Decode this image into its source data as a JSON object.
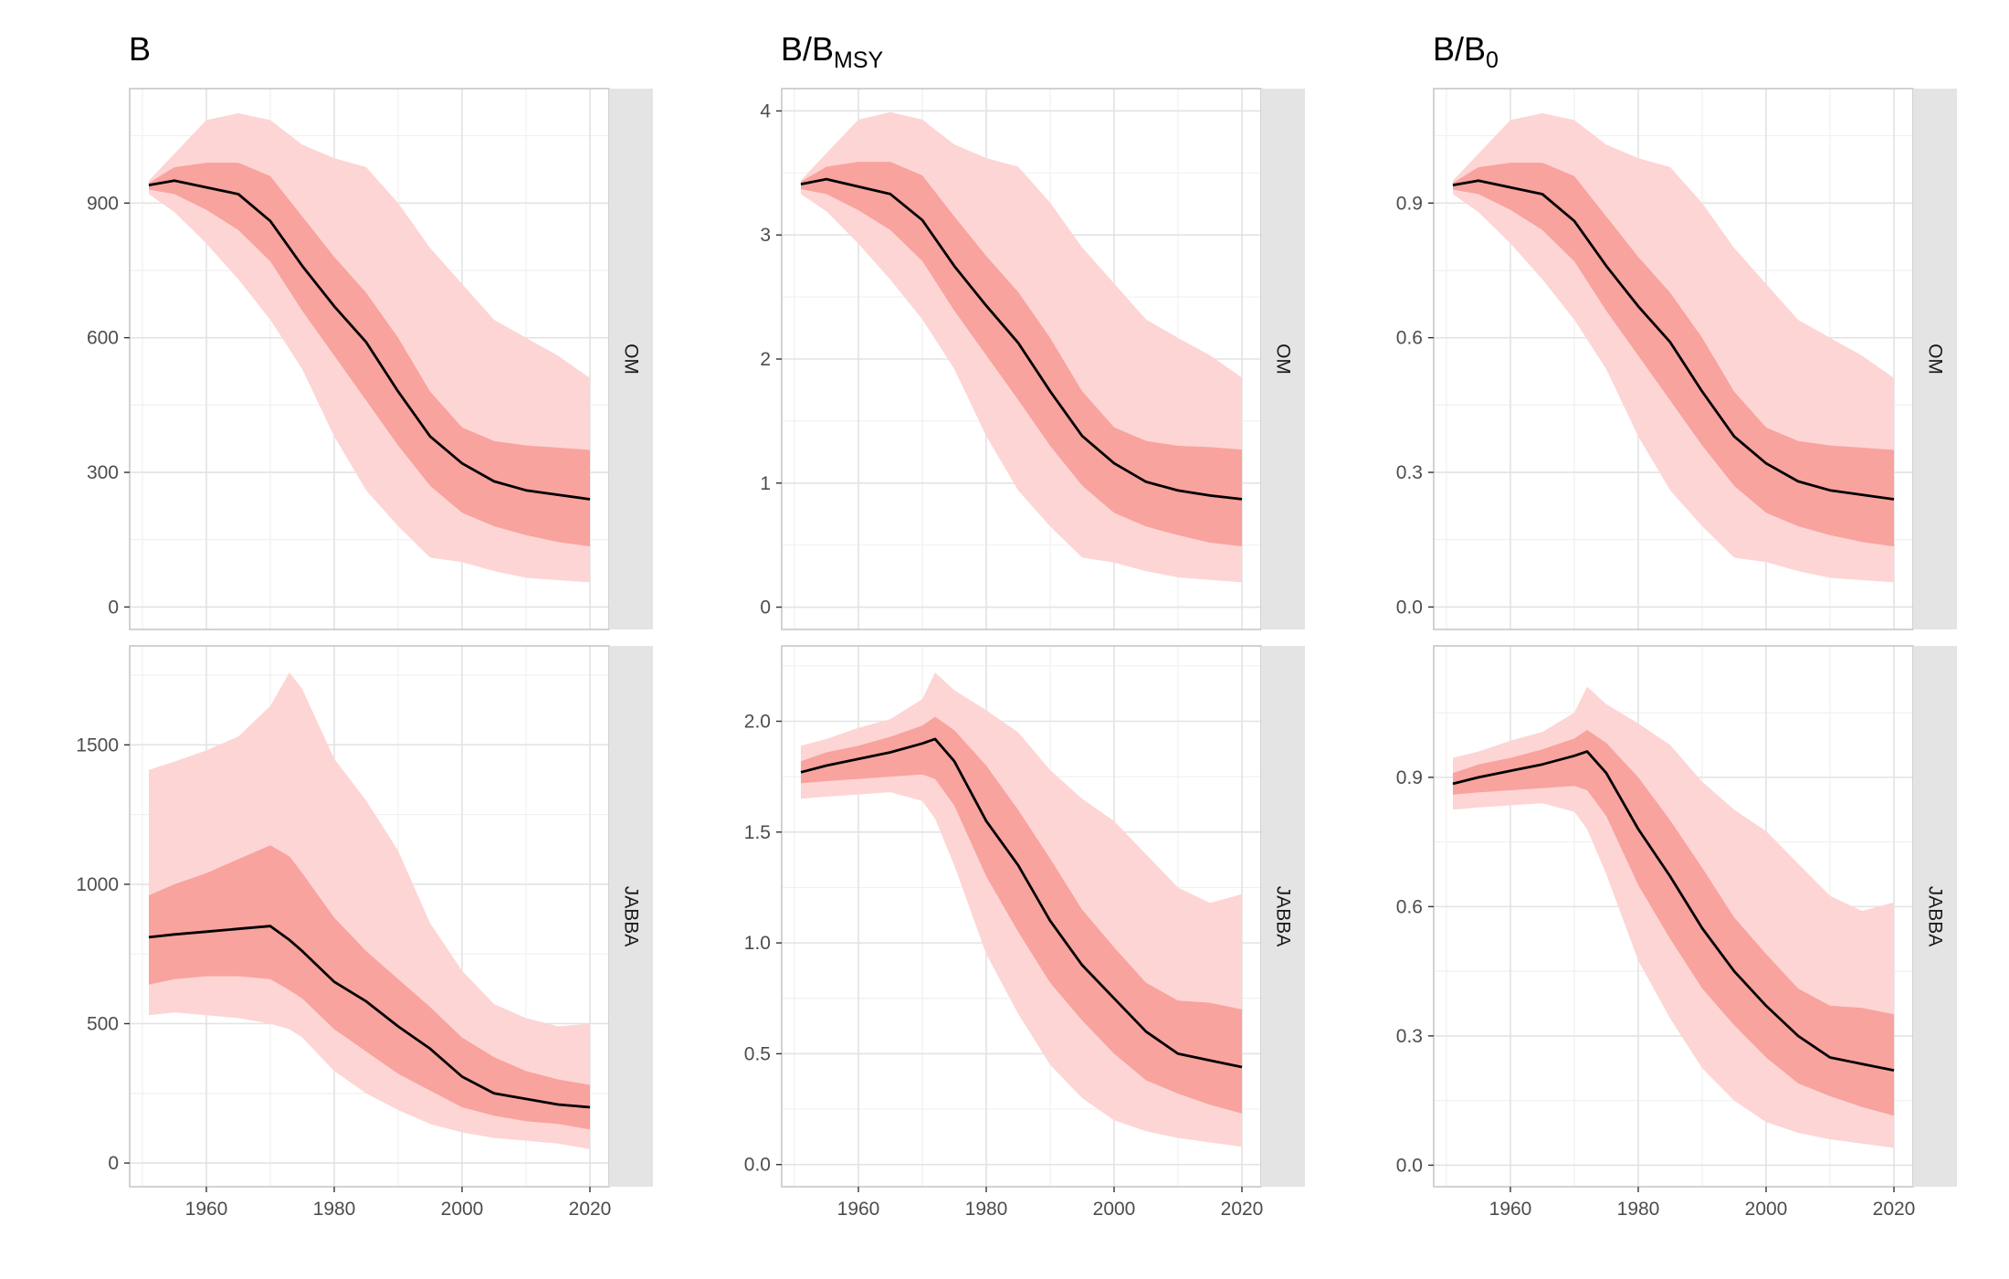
{
  "figure": {
    "rows": [
      "OM",
      "JABBA"
    ],
    "colors": {
      "outer_band": "#fdd5d4",
      "inner_band": "#f8a39e",
      "median": "#000000",
      "strip": "#e4e4e4",
      "grid_major": "#e3e3e3",
      "grid_minor": "#f1f1f1",
      "panel_border": "#c4c4c4"
    }
  },
  "chart_data": [
    {
      "type": "area",
      "column": "B",
      "title": "B",
      "title_main": "B",
      "title_sub": "",
      "xlim": [
        1948,
        2023
      ],
      "x_ticks": [
        1960,
        1980,
        2000,
        2020
      ],
      "panels": [
        {
          "row": "OM",
          "ylim": [
            -50,
            1155
          ],
          "y_ticks": [
            0,
            300,
            600,
            900
          ],
          "x": [
            1951,
            1955,
            1960,
            1965,
            1970,
            1975,
            1980,
            1985,
            1990,
            1995,
            2000,
            2005,
            2010,
            2015,
            2020
          ],
          "median": [
            940,
            950,
            935,
            920,
            860,
            760,
            670,
            590,
            480,
            380,
            320,
            280,
            260,
            250,
            240
          ],
          "inner_low": [
            930,
            920,
            885,
            840,
            770,
            660,
            560,
            460,
            360,
            270,
            210,
            180,
            160,
            145,
            135
          ],
          "inner_high": [
            945,
            980,
            990,
            990,
            960,
            870,
            780,
            700,
            600,
            480,
            400,
            370,
            360,
            355,
            350
          ],
          "outer_low": [
            920,
            880,
            810,
            730,
            640,
            530,
            380,
            260,
            180,
            110,
            100,
            80,
            65,
            60,
            55
          ],
          "outer_high": [
            950,
            1010,
            1085,
            1100,
            1085,
            1030,
            1000,
            980,
            900,
            800,
            720,
            640,
            600,
            560,
            510
          ]
        },
        {
          "row": "JABBA",
          "ylim": [
            -85,
            1855
          ],
          "y_ticks": [
            0,
            500,
            1000,
            1500
          ],
          "x": [
            1951,
            1955,
            1960,
            1965,
            1970,
            1973,
            1975,
            1980,
            1985,
            1990,
            1995,
            2000,
            2005,
            2010,
            2015,
            2020
          ],
          "median": [
            810,
            820,
            830,
            840,
            850,
            800,
            760,
            650,
            580,
            490,
            410,
            310,
            250,
            230,
            210,
            200
          ],
          "inner_low": [
            640,
            660,
            670,
            670,
            660,
            620,
            590,
            480,
            400,
            320,
            260,
            200,
            170,
            150,
            140,
            120
          ],
          "inner_high": [
            960,
            1000,
            1040,
            1090,
            1140,
            1100,
            1040,
            880,
            760,
            660,
            560,
            450,
            380,
            330,
            300,
            280
          ],
          "outer_low": [
            530,
            540,
            530,
            520,
            500,
            480,
            450,
            330,
            250,
            190,
            140,
            110,
            90,
            80,
            70,
            50
          ],
          "outer_high": [
            1410,
            1440,
            1480,
            1530,
            1640,
            1760,
            1700,
            1450,
            1300,
            1120,
            860,
            690,
            570,
            520,
            490,
            500
          ]
        }
      ]
    },
    {
      "type": "area",
      "column": "B/BMSY",
      "title": "B/BMSY",
      "title_main": "B/B",
      "title_sub": "MSY",
      "xlim": [
        1948,
        2023
      ],
      "x_ticks": [
        1960,
        1980,
        2000,
        2020
      ],
      "panels": [
        {
          "row": "OM",
          "ylim": [
            -0.18,
            4.18
          ],
          "y_ticks": [
            0,
            1,
            2,
            3,
            4
          ],
          "x": [
            1951,
            1955,
            1960,
            1965,
            1970,
            1975,
            1980,
            1985,
            1990,
            1995,
            2000,
            2005,
            2010,
            2015,
            2020
          ],
          "median": [
            3.41,
            3.45,
            3.39,
            3.33,
            3.12,
            2.75,
            2.43,
            2.13,
            1.74,
            1.38,
            1.16,
            1.01,
            0.94,
            0.9,
            0.87
          ],
          "inner_low": [
            3.37,
            3.33,
            3.2,
            3.04,
            2.79,
            2.39,
            2.03,
            1.67,
            1.3,
            0.98,
            0.76,
            0.65,
            0.58,
            0.52,
            0.49
          ],
          "inner_high": [
            3.43,
            3.55,
            3.59,
            3.59,
            3.48,
            3.15,
            2.83,
            2.54,
            2.17,
            1.74,
            1.45,
            1.34,
            1.3,
            1.29,
            1.27
          ],
          "outer_low": [
            3.33,
            3.19,
            2.93,
            2.64,
            2.32,
            1.92,
            1.38,
            0.94,
            0.65,
            0.4,
            0.36,
            0.29,
            0.24,
            0.22,
            0.2
          ],
          "outer_high": [
            3.44,
            3.66,
            3.93,
            3.99,
            3.93,
            3.73,
            3.62,
            3.55,
            3.26,
            2.9,
            2.61,
            2.32,
            2.17,
            2.03,
            1.85
          ]
        },
        {
          "row": "JABBA",
          "ylim": [
            -0.1,
            2.34
          ],
          "y_ticks": [
            0.0,
            0.5,
            1.0,
            1.5,
            2.0
          ],
          "x": [
            1951,
            1955,
            1960,
            1965,
            1970,
            1972,
            1975,
            1980,
            1985,
            1990,
            1995,
            2000,
            2005,
            2010,
            2015,
            2020
          ],
          "median": [
            1.77,
            1.8,
            1.83,
            1.86,
            1.9,
            1.92,
            1.82,
            1.55,
            1.35,
            1.1,
            0.9,
            0.75,
            0.6,
            0.5,
            0.47,
            0.44
          ],
          "inner_low": [
            1.72,
            1.73,
            1.74,
            1.75,
            1.76,
            1.74,
            1.62,
            1.3,
            1.05,
            0.82,
            0.65,
            0.5,
            0.38,
            0.32,
            0.27,
            0.23
          ],
          "inner_high": [
            1.82,
            1.86,
            1.89,
            1.93,
            1.98,
            2.02,
            1.96,
            1.8,
            1.6,
            1.38,
            1.15,
            0.98,
            0.82,
            0.74,
            0.73,
            0.7
          ],
          "outer_low": [
            1.65,
            1.66,
            1.67,
            1.68,
            1.64,
            1.56,
            1.35,
            0.95,
            0.68,
            0.45,
            0.3,
            0.2,
            0.15,
            0.12,
            0.1,
            0.08
          ],
          "outer_high": [
            1.89,
            1.92,
            1.97,
            2.01,
            2.1,
            2.22,
            2.14,
            2.05,
            1.95,
            1.78,
            1.65,
            1.55,
            1.4,
            1.25,
            1.18,
            1.22
          ]
        }
      ]
    },
    {
      "type": "area",
      "column": "B/B0",
      "title": "B/B0",
      "title_main": "B/B",
      "title_sub": "0",
      "xlim": [
        1948,
        2023
      ],
      "x_ticks": [
        1960,
        1980,
        2000,
        2020
      ],
      "panels": [
        {
          "row": "OM",
          "ylim": [
            -0.05,
            1.155
          ],
          "y_ticks": [
            0.0,
            0.3,
            0.6,
            0.9
          ],
          "x": [
            1951,
            1955,
            1960,
            1965,
            1970,
            1975,
            1980,
            1985,
            1990,
            1995,
            2000,
            2005,
            2010,
            2015,
            2020
          ],
          "median": [
            0.94,
            0.95,
            0.935,
            0.92,
            0.86,
            0.76,
            0.67,
            0.59,
            0.48,
            0.38,
            0.32,
            0.28,
            0.26,
            0.25,
            0.24
          ],
          "inner_low": [
            0.93,
            0.92,
            0.885,
            0.84,
            0.77,
            0.66,
            0.56,
            0.46,
            0.36,
            0.27,
            0.21,
            0.18,
            0.16,
            0.145,
            0.135
          ],
          "inner_high": [
            0.945,
            0.98,
            0.99,
            0.99,
            0.96,
            0.87,
            0.78,
            0.7,
            0.6,
            0.48,
            0.4,
            0.37,
            0.36,
            0.355,
            0.35
          ],
          "outer_low": [
            0.92,
            0.88,
            0.81,
            0.73,
            0.64,
            0.53,
            0.38,
            0.26,
            0.18,
            0.11,
            0.1,
            0.08,
            0.065,
            0.06,
            0.055
          ],
          "outer_high": [
            0.95,
            1.01,
            1.085,
            1.1,
            1.085,
            1.03,
            1.0,
            0.98,
            0.9,
            0.8,
            0.72,
            0.64,
            0.6,
            0.56,
            0.51
          ]
        },
        {
          "row": "JABBA",
          "ylim": [
            -0.05,
            1.205
          ],
          "y_ticks": [
            0.0,
            0.3,
            0.6,
            0.9
          ],
          "x": [
            1951,
            1955,
            1960,
            1965,
            1970,
            1972,
            1975,
            1980,
            1985,
            1990,
            1995,
            2000,
            2005,
            2010,
            2015,
            2020
          ],
          "median": [
            0.885,
            0.9,
            0.915,
            0.93,
            0.95,
            0.96,
            0.91,
            0.78,
            0.67,
            0.55,
            0.45,
            0.37,
            0.3,
            0.25,
            0.235,
            0.22
          ],
          "inner_low": [
            0.86,
            0.865,
            0.87,
            0.875,
            0.88,
            0.87,
            0.81,
            0.65,
            0.525,
            0.41,
            0.325,
            0.25,
            0.19,
            0.16,
            0.135,
            0.115
          ],
          "inner_high": [
            0.91,
            0.93,
            0.945,
            0.965,
            0.99,
            1.01,
            0.98,
            0.9,
            0.8,
            0.69,
            0.575,
            0.49,
            0.41,
            0.37,
            0.365,
            0.35
          ],
          "outer_low": [
            0.825,
            0.83,
            0.835,
            0.84,
            0.82,
            0.78,
            0.675,
            0.475,
            0.34,
            0.225,
            0.15,
            0.1,
            0.075,
            0.06,
            0.05,
            0.04
          ],
          "outer_high": [
            0.945,
            0.96,
            0.985,
            1.005,
            1.05,
            1.11,
            1.07,
            1.025,
            0.975,
            0.89,
            0.825,
            0.775,
            0.7,
            0.625,
            0.59,
            0.61
          ]
        }
      ]
    }
  ]
}
